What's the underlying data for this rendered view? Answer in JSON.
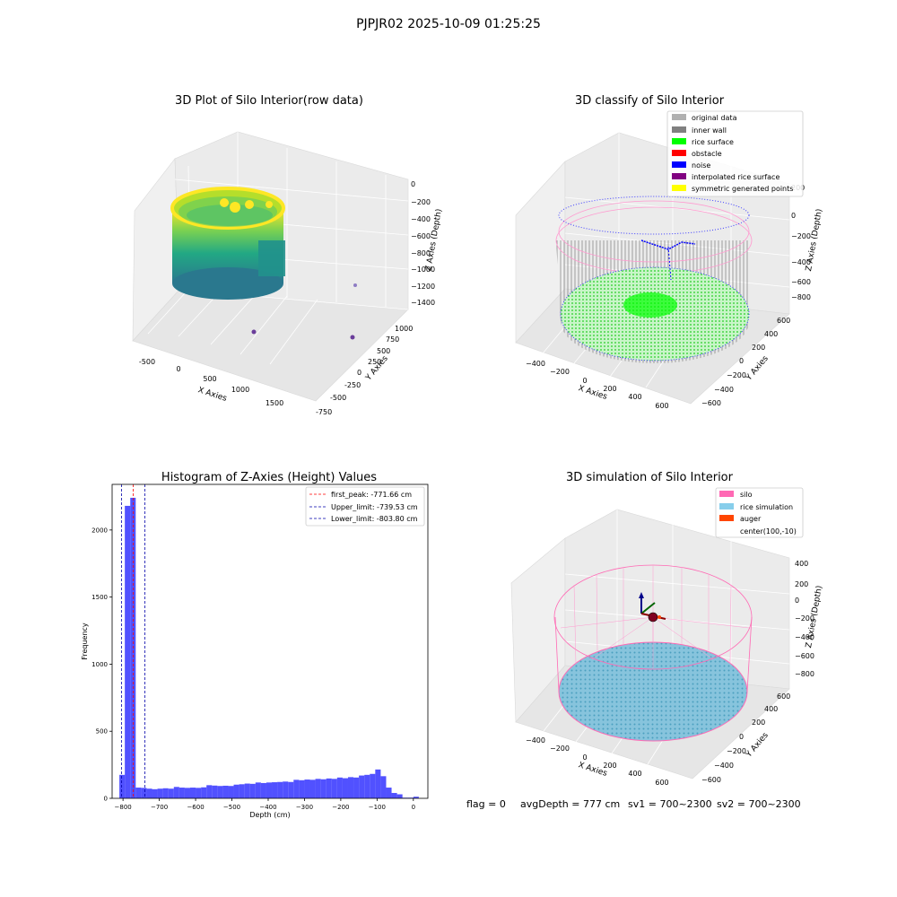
{
  "suptitle": "PJPJR02 2025-10-09 01:25:25",
  "colors": {
    "hist_bar": "#3333ff",
    "peak_line": "#ff0000",
    "limit_line": "#0000aa",
    "silo": "#ff69b4",
    "rice_simulation": "#87ceeb",
    "auger": "#ff4500",
    "grid_pane": "#f2f2f2"
  },
  "chart_data": [
    {
      "type": "scatter",
      "projection": "3d",
      "title": "3D Plot of Silo Interior(row data)",
      "xlabel": "X Axies",
      "ylabel": "Y Axies",
      "zlabel": "Z Axies (Depth)",
      "x_ticks": [
        "-500",
        "0",
        "500",
        "1000",
        "1500"
      ],
      "y_ticks": [
        "-750",
        "-500",
        "-250",
        "0",
        "250",
        "500",
        "750",
        "1000"
      ],
      "z_ticks": [
        "0",
        "−200",
        "−400",
        "−600",
        "−800",
        "−1000",
        "−1200",
        "−1400"
      ],
      "colormap": "viridis (by depth)",
      "grid": true
    },
    {
      "type": "scatter",
      "projection": "3d",
      "title": "3D classify of Silo Interior",
      "xlabel": "X Axies",
      "ylabel": "Y Axies",
      "zlabel": "Z Axies (Depth)",
      "x_ticks": [
        "−400",
        "−200",
        "0",
        "200",
        "400",
        "600"
      ],
      "y_ticks": [
        "−600",
        "−400",
        "−200",
        "0",
        "200",
        "400",
        "600"
      ],
      "z_ticks": [
        "200",
        "0",
        "−200",
        "−400",
        "−600",
        "−800"
      ],
      "legend_position": "top-right",
      "legend": [
        {
          "label": "original data",
          "color": "#b0b0b0"
        },
        {
          "label": "inner wall",
          "color": "#808080"
        },
        {
          "label": "rice surface",
          "color": "#00ff00"
        },
        {
          "label": "obstacle",
          "color": "#ff0000"
        },
        {
          "label": "noise",
          "color": "#0000ff"
        },
        {
          "label": "interpolated rice surface",
          "color": "#800080"
        },
        {
          "label": "symmetric generated points",
          "color": "#ffff00"
        }
      ],
      "grid": true
    },
    {
      "type": "bar",
      "title": "Histogram of Z-Axies (Height) Values",
      "xlabel": "Depth (cm)",
      "ylabel": "Frequency",
      "xlim": [
        -830,
        40
      ],
      "ylim": [
        0,
        2340
      ],
      "x_ticks": [
        -800,
        -700,
        -600,
        -500,
        -400,
        -300,
        -200,
        -100,
        0
      ],
      "y_ticks": [
        0,
        500,
        1000,
        1500,
        2000
      ],
      "bin_width": 15,
      "bins": [
        {
          "x": -810,
          "y": 175
        },
        {
          "x": -795,
          "y": 2180
        },
        {
          "x": -780,
          "y": 2240
        },
        {
          "x": -765,
          "y": 80
        },
        {
          "x": -750,
          "y": 78
        },
        {
          "x": -735,
          "y": 72
        },
        {
          "x": -720,
          "y": 68
        },
        {
          "x": -705,
          "y": 72
        },
        {
          "x": -690,
          "y": 75
        },
        {
          "x": -675,
          "y": 72
        },
        {
          "x": -660,
          "y": 85
        },
        {
          "x": -645,
          "y": 80
        },
        {
          "x": -630,
          "y": 78
        },
        {
          "x": -615,
          "y": 80
        },
        {
          "x": -600,
          "y": 78
        },
        {
          "x": -585,
          "y": 82
        },
        {
          "x": -570,
          "y": 98
        },
        {
          "x": -555,
          "y": 95
        },
        {
          "x": -540,
          "y": 92
        },
        {
          "x": -525,
          "y": 94
        },
        {
          "x": -510,
          "y": 92
        },
        {
          "x": -495,
          "y": 102
        },
        {
          "x": -480,
          "y": 105
        },
        {
          "x": -465,
          "y": 110
        },
        {
          "x": -450,
          "y": 108
        },
        {
          "x": -435,
          "y": 118
        },
        {
          "x": -420,
          "y": 114
        },
        {
          "x": -405,
          "y": 118
        },
        {
          "x": -390,
          "y": 120
        },
        {
          "x": -375,
          "y": 122
        },
        {
          "x": -360,
          "y": 125
        },
        {
          "x": -345,
          "y": 122
        },
        {
          "x": -330,
          "y": 138
        },
        {
          "x": -315,
          "y": 135
        },
        {
          "x": -300,
          "y": 140
        },
        {
          "x": -285,
          "y": 138
        },
        {
          "x": -270,
          "y": 145
        },
        {
          "x": -255,
          "y": 142
        },
        {
          "x": -240,
          "y": 148
        },
        {
          "x": -225,
          "y": 145
        },
        {
          "x": -210,
          "y": 155
        },
        {
          "x": -195,
          "y": 150
        },
        {
          "x": -180,
          "y": 158
        },
        {
          "x": -165,
          "y": 155
        },
        {
          "x": -150,
          "y": 170
        },
        {
          "x": -135,
          "y": 175
        },
        {
          "x": -120,
          "y": 182
        },
        {
          "x": -105,
          "y": 215
        },
        {
          "x": -90,
          "y": 165
        },
        {
          "x": -75,
          "y": 80
        },
        {
          "x": -60,
          "y": 40
        },
        {
          "x": -45,
          "y": 30
        },
        {
          "x": -30,
          "y": 5
        },
        {
          "x": -15,
          "y": 5
        },
        {
          "x": 0,
          "y": 12
        }
      ],
      "vlines": [
        {
          "x": -771.66,
          "label": "first_peak: -771.66 cm",
          "color": "#ff0000"
        },
        {
          "x": -739.53,
          "label": "Upper_limit: -739.53 cm",
          "color": "#0000aa"
        },
        {
          "x": -803.8,
          "label": "Lower_limit: -803.80 cm",
          "color": "#0000aa"
        }
      ],
      "legend_position": "top-right",
      "grid": false
    },
    {
      "type": "scatter",
      "projection": "3d",
      "title": "3D simulation of Silo Interior",
      "xlabel": "X Axies",
      "ylabel": "Y Axies",
      "zlabel": "Z Axies (Depth)",
      "x_ticks": [
        "−400",
        "−200",
        "0",
        "200",
        "400",
        "600"
      ],
      "y_ticks": [
        "−600",
        "−400",
        "−200",
        "0",
        "200",
        "400",
        "600"
      ],
      "z_ticks": [
        "400",
        "200",
        "0",
        "−200",
        "−400",
        "−600",
        "−800"
      ],
      "legend_position": "top-right",
      "legend": [
        {
          "label": "silo",
          "color": "#ff69b4"
        },
        {
          "label": "rice simulation",
          "color": "#87ceeb"
        },
        {
          "label": "auger",
          "color": "#ff4500"
        },
        {
          "label": "center(100,-10)",
          "color": "none"
        }
      ],
      "grid": true
    }
  ],
  "status": {
    "flag": "flag = 0",
    "avg_depth": "avgDepth = 777 cm",
    "sv1": "sv1 = 700~2300",
    "sv2": "sv2 = 700~2300"
  }
}
